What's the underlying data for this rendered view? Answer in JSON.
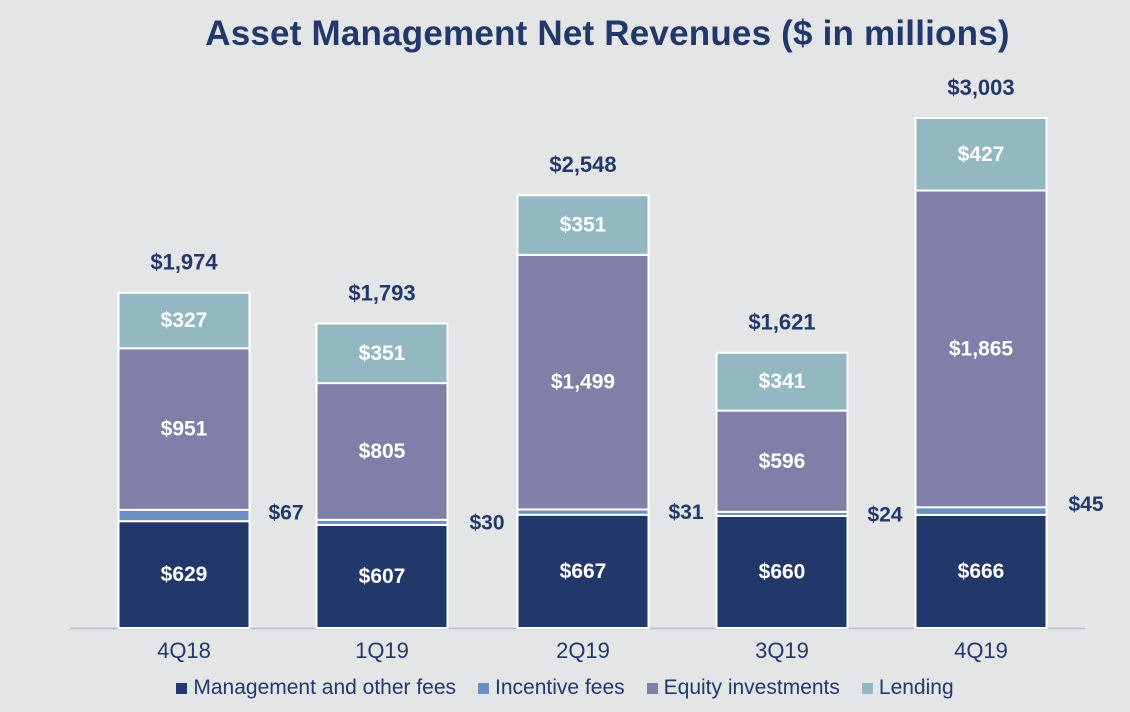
{
  "chart_data": {
    "type": "bar",
    "stacked": true,
    "title": "Asset Management Net Revenues ($ in millions)",
    "categories": [
      "4Q18",
      "1Q19",
      "2Q19",
      "3Q19",
      "4Q19"
    ],
    "series": [
      {
        "name": "Management and other fees",
        "color": "#22386b",
        "values": [
          629,
          607,
          667,
          660,
          666
        ],
        "labels": [
          "$629",
          "$607",
          "$667",
          "$660",
          "$666"
        ]
      },
      {
        "name": "Incentive fees",
        "color": "#6b8fc2",
        "values": [
          67,
          30,
          31,
          24,
          45
        ],
        "labels": [
          "$67",
          "$30",
          "$31",
          "$24",
          "$45"
        ]
      },
      {
        "name": "Equity investments",
        "color": "#7f7fa7",
        "values": [
          951,
          805,
          1499,
          596,
          1865
        ],
        "labels": [
          "$951",
          "$805",
          "$1,499",
          "$596",
          "$1,865"
        ]
      },
      {
        "name": "Lending",
        "color": "#93b8c2",
        "values": [
          327,
          351,
          351,
          341,
          427
        ],
        "labels": [
          "$327",
          "$351",
          "$351",
          "$341",
          "$427"
        ]
      }
    ],
    "totals": [
      1974,
      1793,
      2548,
      1621,
      3003
    ],
    "total_labels": [
      "$1,974",
      "$1,793",
      "$2,548",
      "$1,621",
      "$3,003"
    ],
    "legend_position": "bottom",
    "grid": false,
    "label_color": "#22386b"
  }
}
